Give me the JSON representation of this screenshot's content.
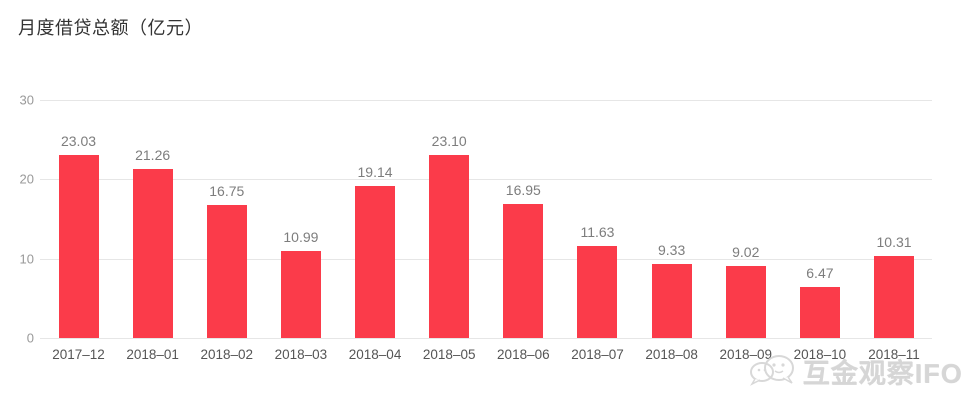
{
  "title": "月度借贷总额（亿元）",
  "watermark": {
    "icon": "wechat-bubbles-icon",
    "text": "互金观察IFO"
  },
  "chart_data": {
    "type": "bar",
    "title": "月度借贷总额（亿元）",
    "categories": [
      "2017–12",
      "2018–01",
      "2018–02",
      "2018–03",
      "2018–04",
      "2018–05",
      "2018–06",
      "2018–07",
      "2018–08",
      "2018–09",
      "2018–10",
      "2018–11"
    ],
    "values": [
      23.03,
      21.26,
      16.75,
      10.99,
      19.14,
      23.1,
      16.95,
      11.63,
      9.33,
      9.02,
      6.47,
      10.31
    ],
    "value_labels": [
      "23.03",
      "21.26",
      "16.75",
      "10.99",
      "19.14",
      "23.10",
      "16.95",
      "11.63",
      "9.33",
      "9.02",
      "6.47",
      "10.31"
    ],
    "xlabel": "",
    "ylabel": "",
    "ylim": [
      0,
      30
    ],
    "y_ticks": [
      0,
      10,
      20,
      30
    ],
    "grid": true,
    "legend": false,
    "bar_color": "#fb3b4a",
    "gridline_color": "#e6e6e6",
    "value_label_color": "#7d7d7d",
    "x_label_color": "#555555",
    "y_tick_color": "#999999"
  }
}
